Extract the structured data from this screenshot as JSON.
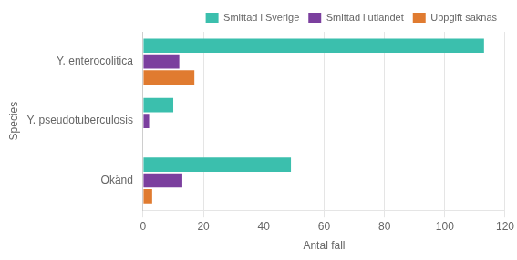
{
  "chart_data": {
    "type": "bar",
    "orientation": "horizontal",
    "categories": [
      "Y. enterocolitica",
      "Y. pseudotuberculosis",
      "Okänd"
    ],
    "series": [
      {
        "name": "Smittad i Sverige",
        "color": "#3bbfad",
        "values": [
          113,
          10,
          49
        ]
      },
      {
        "name": "Smittad i utlandet",
        "color": "#7b3f9e",
        "values": [
          12,
          2,
          13
        ]
      },
      {
        "name": "Uppgift saknas",
        "color": "#e07b30",
        "values": [
          17,
          0,
          3
        ]
      }
    ],
    "xlabel": "Antal fall",
    "ylabel": "Species",
    "xlim": [
      0,
      120
    ],
    "xticks": [
      0,
      20,
      40,
      60,
      80,
      100,
      120
    ],
    "grid": true,
    "legend": "upper right"
  }
}
